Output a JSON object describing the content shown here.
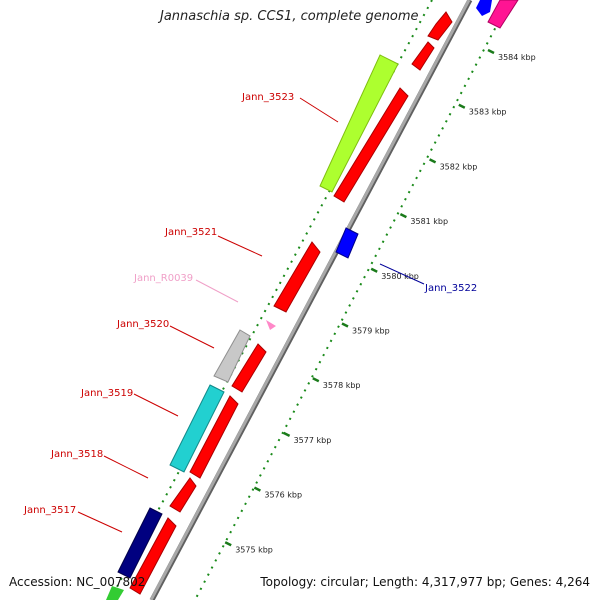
{
  "title": "Jannaschia sp. CCS1, complete genome",
  "footer": {
    "accession": "Accession: NC_007802",
    "summary": "Topology: circular; Length: 4,317,977 bp; Genes: 4,264"
  },
  "scale_ticks": [
    {
      "label": "3584 kbp",
      "kbp": 3584
    },
    {
      "label": "3583 kbp",
      "kbp": 3583
    },
    {
      "label": "3582 kbp",
      "kbp": 3582
    },
    {
      "label": "3581 kbp",
      "kbp": 3581
    },
    {
      "label": "3580 kbp",
      "kbp": 3580
    },
    {
      "label": "3579 kbp",
      "kbp": 3579
    },
    {
      "label": "3578 kbp",
      "kbp": 3578
    },
    {
      "label": "3577 kbp",
      "kbp": 3577
    },
    {
      "label": "3576 kbp",
      "kbp": 3576
    },
    {
      "label": "3575 kbp",
      "kbp": 3575
    }
  ],
  "gene_labels": [
    {
      "name": "Jann_3523",
      "color": "#cc0000"
    },
    {
      "name": "Jann_3521",
      "color": "#cc0000"
    },
    {
      "name": "Jann_R0039",
      "color": "#f0a0c8"
    },
    {
      "name": "Jann_3520",
      "color": "#cc0000"
    },
    {
      "name": "Jann_3519",
      "color": "#cc0000"
    },
    {
      "name": "Jann_3518",
      "color": "#cc0000"
    },
    {
      "name": "Jann_3517",
      "color": "#cc0000"
    },
    {
      "name": "Jann_3522",
      "color": "#000099"
    }
  ],
  "colors": {
    "backbone": "#909090",
    "cds": "#ff0000",
    "tick_marks": "#008000",
    "sugar_transport": "#adff2f",
    "cyan_feature": "#20c8c8",
    "grey_feature": "#c0c0c0",
    "navy_feature": "#000080",
    "blue_feature": "#0000ff",
    "magenta_feature": "#ff1493",
    "pink_feature": "#ff80c0"
  }
}
